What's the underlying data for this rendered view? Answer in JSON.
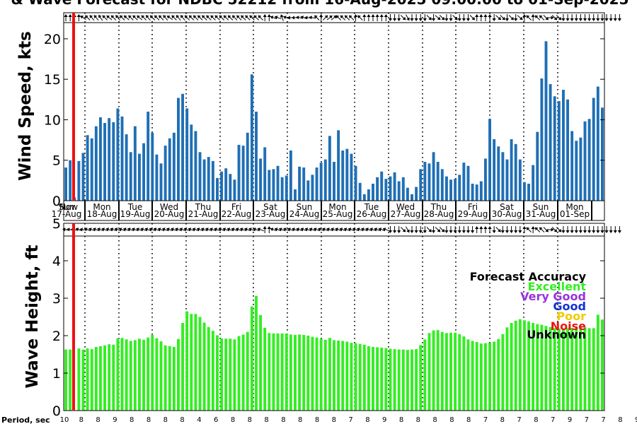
{
  "title": "& Wave Forecast for NDBC 52212 from 16-Aug-2025 09:00:00 to 01-Sep-2025",
  "chart_data": [
    {
      "type": "bar",
      "name": "wind",
      "ylabel": "Wind Speed, kts",
      "ylim": [
        0,
        22
      ],
      "yticks": [
        "0",
        "5",
        "10",
        "15",
        "20"
      ],
      "color": "#1f6fb5",
      "values": [
        4.1,
        5.0,
        0.4,
        4.9,
        5.9,
        8.1,
        7.7,
        9.2,
        10.3,
        9.6,
        10.2,
        9.7,
        11.4,
        10.4,
        8.2,
        6.0,
        9.2,
        5.8,
        7.1,
        11.0,
        8.4,
        5.7,
        4.6,
        6.8,
        7.7,
        8.4,
        12.7,
        13.2,
        11.4,
        9.4,
        8.6,
        6.0,
        5.1,
        5.4,
        4.9,
        2.8,
        3.6,
        4.0,
        3.3,
        2.6,
        6.9,
        6.8,
        8.4,
        15.6,
        11.0,
        5.2,
        6.6,
        3.8,
        3.9,
        4.3,
        2.9,
        3.1,
        6.2,
        1.4,
        4.2,
        4.1,
        2.5,
        3.2,
        4.1,
        4.7,
        5.1,
        8.0,
        4.8,
        8.7,
        6.2,
        6.4,
        5.8,
        4.3,
        2.2,
        0.8,
        1.4,
        2.1,
        2.9,
        3.6,
        2.7,
        3.0,
        3.5,
        2.4,
        2.9,
        1.6,
        0.8,
        1.7,
        3.9,
        4.8,
        4.6,
        6.0,
        4.8,
        3.9,
        3.0,
        2.6,
        2.7,
        3.2,
        4.7,
        4.3,
        2.1,
        2.0,
        2.4,
        5.2,
        10.1,
        7.6,
        6.7,
        6.0,
        5.1,
        7.6,
        7.0,
        5.1,
        2.3,
        2.1,
        4.4,
        8.5,
        15.1,
        19.7,
        14.4,
        12.9,
        12.3,
        13.7,
        12.5,
        8.6,
        7.4,
        7.8,
        9.8,
        10.1,
        12.7,
        14.1,
        11.5
      ],
      "arrows": [
        270,
        270,
        270,
        270,
        215,
        225,
        230,
        230,
        235,
        225,
        220,
        225,
        230,
        225,
        220,
        225,
        225,
        220,
        225,
        230,
        225,
        225,
        225,
        230,
        215,
        225,
        230,
        230,
        225,
        225,
        225,
        225,
        225,
        225,
        225,
        225,
        225,
        225,
        225,
        225,
        225,
        225,
        225,
        225,
        225,
        225,
        270,
        270,
        200,
        200,
        250,
        200,
        180,
        180,
        190,
        200,
        185,
        190,
        225,
        270,
        315,
        320,
        320,
        225,
        225,
        225,
        225,
        270,
        225,
        270,
        270,
        270,
        270,
        270,
        270,
        90,
        90,
        90,
        45,
        60,
        90,
        90,
        90,
        90,
        45,
        90,
        40,
        45,
        90,
        90,
        45,
        90,
        90,
        90,
        45,
        270,
        270,
        270,
        270,
        90,
        40,
        45,
        90,
        45,
        90,
        40,
        270,
        225,
        270,
        225,
        225,
        45,
        0,
        45,
        45,
        90,
        90,
        90,
        90,
        90,
        90,
        90,
        90,
        90,
        90,
        90,
        90,
        90,
        90
      ]
    },
    {
      "type": "bar",
      "name": "wave",
      "ylabel": "Wave Height, ft",
      "ylim": [
        0,
        5
      ],
      "yticks": [
        "0",
        "1",
        "2",
        "3",
        "4",
        "5"
      ],
      "color": "#33ee22",
      "values": [
        1.63,
        1.63,
        0.0,
        1.66,
        1.63,
        1.66,
        1.64,
        1.7,
        1.72,
        1.74,
        1.77,
        1.76,
        1.93,
        1.94,
        1.9,
        1.86,
        1.88,
        1.92,
        1.89,
        1.95,
        2.02,
        1.93,
        1.85,
        1.74,
        1.72,
        1.7,
        1.91,
        2.34,
        2.65,
        2.58,
        2.58,
        2.5,
        2.35,
        2.23,
        2.13,
        2.01,
        1.93,
        1.92,
        1.92,
        1.9,
        1.99,
        2.03,
        2.1,
        2.78,
        3.06,
        2.55,
        2.21,
        2.07,
        2.06,
        2.06,
        2.06,
        2.06,
        2.03,
        2.02,
        2.03,
        2.02,
        2.0,
        1.97,
        1.95,
        1.92,
        1.89,
        1.94,
        1.88,
        1.87,
        1.86,
        1.84,
        1.81,
        1.8,
        1.78,
        1.76,
        1.72,
        1.7,
        1.69,
        1.68,
        1.67,
        1.65,
        1.64,
        1.63,
        1.63,
        1.62,
        1.63,
        1.64,
        1.75,
        1.9,
        2.07,
        2.14,
        2.15,
        2.1,
        2.07,
        2.08,
        2.08,
        2.04,
        1.98,
        1.9,
        1.86,
        1.83,
        1.79,
        1.8,
        1.81,
        1.84,
        1.91,
        2.04,
        2.22,
        2.34,
        2.4,
        2.44,
        2.41,
        2.38,
        2.34,
        2.31,
        2.29,
        2.26,
        2.23,
        2.2,
        2.19,
        2.19,
        2.2,
        2.21,
        2.22,
        2.23,
        2.22,
        2.2,
        2.2,
        2.56,
        2.43
      ],
      "arrows": [
        190,
        190,
        190,
        200,
        190,
        200,
        200,
        200,
        200,
        200,
        200,
        200,
        200,
        200,
        200,
        200,
        200,
        200,
        200,
        200,
        200,
        200,
        200,
        200,
        200,
        200,
        200,
        200,
        200,
        200,
        200,
        200,
        200,
        200,
        200,
        200,
        200,
        200,
        200,
        200,
        200,
        200,
        200,
        200,
        200,
        200,
        270,
        270,
        200,
        200,
        200,
        200,
        200,
        200,
        200,
        200,
        200,
        200,
        200,
        200,
        200,
        200,
        200,
        200,
        200,
        200,
        200,
        200,
        200,
        200,
        200,
        200,
        200,
        200,
        200,
        90,
        90,
        90,
        45,
        60,
        90,
        90,
        90,
        90,
        45,
        90,
        45,
        45,
        90,
        90,
        90,
        90,
        90,
        90,
        90,
        270,
        270,
        270,
        270,
        90,
        45,
        90,
        90,
        90,
        90,
        90,
        270,
        225,
        270,
        225,
        225,
        45,
        0,
        45,
        45,
        90,
        90,
        90,
        90,
        90,
        90,
        90,
        90,
        90,
        90,
        90,
        90,
        90,
        90
      ]
    }
  ],
  "days": [
    {
      "dow": "Sun",
      "date": "17-Aug"
    },
    {
      "dow": "Mon",
      "date": "18-Aug"
    },
    {
      "dow": "Tue",
      "date": "19-Aug"
    },
    {
      "dow": "Wed",
      "date": "20-Aug"
    },
    {
      "dow": "Thu",
      "date": "21-Aug"
    },
    {
      "dow": "Fri",
      "date": "22-Aug"
    },
    {
      "dow": "Sat",
      "date": "23-Aug"
    },
    {
      "dow": "Sun",
      "date": "24-Aug"
    },
    {
      "dow": "Mon",
      "date": "25-Aug"
    },
    {
      "dow": "Tue",
      "date": "26-Aug"
    },
    {
      "dow": "Wed",
      "date": "27-Aug"
    },
    {
      "dow": "Thu",
      "date": "28-Aug"
    },
    {
      "dow": "Fri",
      "date": "29-Aug"
    },
    {
      "dow": "Sat",
      "date": "30-Aug"
    },
    {
      "dow": "Sun",
      "date": "31-Aug"
    },
    {
      "dow": "Mon",
      "date": "01-Sep"
    }
  ],
  "now_label": "Now",
  "legend": {
    "title": "Forecast Accuracy",
    "items": [
      {
        "label": "Excellent",
        "color": "#33ee22"
      },
      {
        "label": "Very Good",
        "color": "#9933dd"
      },
      {
        "label": "Good",
        "color": "#1133cc"
      },
      {
        "label": "Poor",
        "color": "#eecc00"
      },
      {
        "label": "Noise",
        "color": "#ee1111"
      },
      {
        "label": "Unknown",
        "color": "#000000"
      }
    ]
  },
  "period_label": "Period, sec",
  "periods": [
    "10",
    "8",
    "8",
    "9",
    "8",
    "8",
    "8",
    "8",
    "4",
    "6",
    "8",
    "8",
    "8",
    "8",
    "8",
    "8",
    "8",
    "7",
    "8",
    "9",
    "8",
    "8",
    "8",
    "8",
    "8",
    "7",
    "8",
    "7",
    "8",
    "7",
    "9",
    "7",
    "7",
    "8",
    "9",
    "8",
    "9",
    "8",
    "8",
    "9",
    "8",
    "8",
    "8",
    "9"
  ],
  "colors": {
    "now_line": "#ee1111",
    "axis": "#000000"
  }
}
